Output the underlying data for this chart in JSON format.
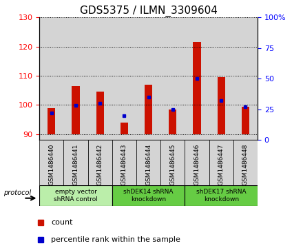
{
  "title": "GDS5375 / ILMN_3309604",
  "samples": [
    "GSM1486440",
    "GSM1486441",
    "GSM1486442",
    "GSM1486443",
    "GSM1486444",
    "GSM1486445",
    "GSM1486446",
    "GSM1486447",
    "GSM1486448"
  ],
  "counts": [
    99.0,
    106.5,
    104.5,
    94.0,
    107.0,
    98.5,
    121.5,
    109.5,
    99.5
  ],
  "percentiles": [
    22,
    28,
    30,
    20,
    35,
    25,
    50,
    32,
    27
  ],
  "bar_bottom": 90,
  "ylim_left": [
    88,
    130
  ],
  "ylim_right": [
    0,
    100
  ],
  "yticks_left": [
    90,
    100,
    110,
    120,
    130
  ],
  "yticks_right": [
    0,
    25,
    50,
    75,
    100
  ],
  "bar_color": "#cc1100",
  "dot_color": "#0000cc",
  "cell_bg": "#d4d4d4",
  "plot_bg": "#ffffff",
  "groups": [
    {
      "label": "empty vector\nshRNA control",
      "start": 0,
      "end": 3,
      "color": "#bbeeaa"
    },
    {
      "label": "shDEK14 shRNA\nknockdown",
      "start": 3,
      "end": 6,
      "color": "#66cc44"
    },
    {
      "label": "shDEK17 shRNA\nknockdown",
      "start": 6,
      "end": 9,
      "color": "#66cc44"
    }
  ],
  "protocol_label": "protocol",
  "legend_count_label": "count",
  "legend_pct_label": "percentile rank within the sample",
  "title_fontsize": 11,
  "tick_fontsize": 8,
  "sample_fontsize": 6.5
}
